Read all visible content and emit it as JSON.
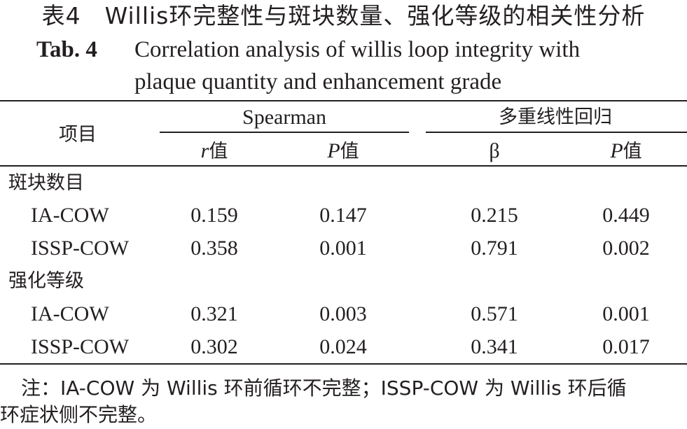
{
  "title": {
    "cn": "表4　Willis环完整性与斑块数量、强化等级的相关性分析",
    "en_label": "Tab. 4",
    "en_line1": "Correlation analysis of willis loop integrity with",
    "en_line2": "plaque quantity and enhancement grade"
  },
  "header": {
    "item": "项目",
    "group1": "Spearman",
    "group2": "多重线性回归",
    "r_letter": "r",
    "value_suffix": "值",
    "p_letter": "P",
    "beta": "β"
  },
  "groups": [
    {
      "label": "斑块数目",
      "rows": [
        {
          "name": "IA-COW",
          "r": "0.159",
          "p1": "0.147",
          "beta": "0.215",
          "p2": "0.449"
        },
        {
          "name": "ISSP-COW",
          "r": "0.358",
          "p1": "0.001",
          "beta": "0.791",
          "p2": "0.002"
        }
      ]
    },
    {
      "label": "强化等级",
      "rows": [
        {
          "name": "IA-COW",
          "r": "0.321",
          "p1": "0.003",
          "beta": "0.571",
          "p2": "0.001"
        },
        {
          "name": "ISSP-COW",
          "r": "0.302",
          "p1": "0.024",
          "beta": "0.341",
          "p2": "0.017"
        }
      ]
    }
  ],
  "note": {
    "line1": "注：IA-COW 为 Willis 环前循环不完整；ISSP-COW 为 Willis 环后循",
    "line2": "环症状侧不完整。"
  }
}
